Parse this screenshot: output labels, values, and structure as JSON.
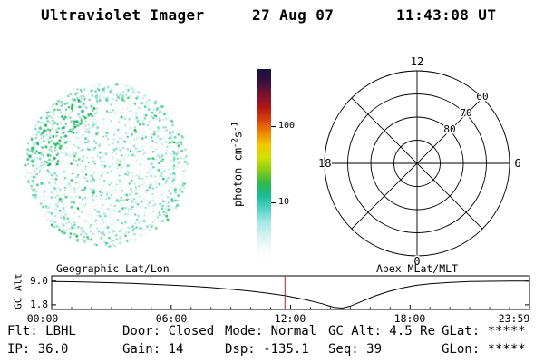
{
  "header": {
    "title": "Ultraviolet Imager",
    "date": "27 Aug 07",
    "time": "11:43:08 UT"
  },
  "uv_image": {
    "seed": 20070827,
    "dot_count": 1150,
    "rim_count": 250,
    "cluster_count": 130,
    "dot_colors": [
      "#e2f5f1",
      "#c6ede5",
      "#9fe0d3",
      "#6fd2bd",
      "#41c4a4",
      "#37c37c",
      "#21b05d",
      "#12a14e"
    ]
  },
  "colorbar": {
    "label_parts": {
      "p1": "photon cm",
      "sup1": "-2",
      "p2": "s",
      "sup2": "-1"
    },
    "ticks": [
      {
        "label": "100",
        "frac": 0.3
      },
      {
        "label": "10",
        "frac": 0.7
      }
    ],
    "colors_top_to_bottom": [
      "#12123e",
      "#3a1040",
      "#781430",
      "#b01616",
      "#d8420e",
      "#ee8400",
      "#f2ca00",
      "#cfe000",
      "#86cc14",
      "#2eb84e",
      "#1cbc94",
      "#52d2c8",
      "#a2e6e2",
      "#d2f2ee",
      "#f2fbfa",
      "#ffffff"
    ]
  },
  "polar_plot": {
    "mlt_top": "12",
    "mlt_left": "18",
    "mlt_right": "6",
    "mlt_bottom": "0",
    "lat_labels": [
      "60",
      "70",
      "80"
    ]
  },
  "timeline": {
    "title_left": "Geographic Lat/Lon",
    "title_right": "Apex MLat/MLT",
    "y_label": "GC Alt",
    "y_ticks": [
      "9.0",
      "1.8"
    ],
    "y_tick_values": [
      9.0,
      1.8
    ],
    "x_ticks": [
      "00:00",
      "06:00",
      "12:00",
      "18:00",
      "23:59"
    ],
    "marker": {
      "time_hours": 11.717,
      "color": "#b22222"
    },
    "curve": {
      "hours": [
        0,
        1,
        2,
        3,
        4,
        5,
        6,
        7,
        8,
        9,
        10,
        10.8,
        11.7,
        12.3,
        12.8,
        13.2,
        13.6,
        13.9,
        14.2,
        14.6,
        15,
        15.6,
        16.2,
        16.9,
        17.6,
        18.3,
        19,
        20,
        21,
        22,
        23,
        23.98
      ],
      "alt_re": [
        8.9,
        8.8,
        8.67,
        8.5,
        8.3,
        8.07,
        7.8,
        7.45,
        7.05,
        6.55,
        5.95,
        5.35,
        4.6,
        3.9,
        3.3,
        2.7,
        2.1,
        1.5,
        1.0,
        0.8,
        1.4,
        2.9,
        4.4,
        5.8,
        6.9,
        7.7,
        8.2,
        8.6,
        8.85,
        8.95,
        9.0,
        9.0
      ],
      "axis_top_value": 10.6,
      "axis_bottom_value": 0.4
    }
  },
  "status": {
    "flt": "Flt: LBHL",
    "door": "Door: Closed",
    "mode": "Mode: Normal",
    "gc_alt": "GC Alt: 4.5 Re",
    "glat": "GLat: *****",
    "ip": "IP: 36.0",
    "gain": "Gain: 14",
    "dsp": "Dsp: -135.1",
    "seq": "Seq: 39",
    "glon": "GLon: *****"
  }
}
